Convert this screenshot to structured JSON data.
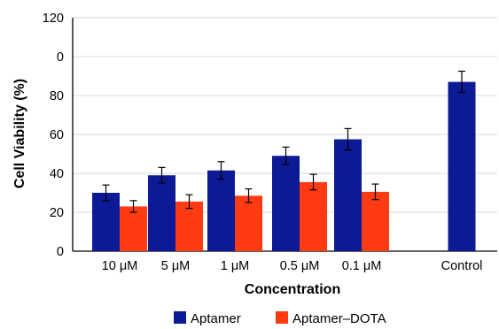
{
  "chart_data": {
    "type": "bar",
    "title": "",
    "xlabel": "Concentration",
    "ylabel": "Cell Viability (%)",
    "ylim": [
      0,
      120
    ],
    "y_ticks": [
      {
        "value": 0,
        "label": "0"
      },
      {
        "value": 20,
        "label": "20"
      },
      {
        "value": 40,
        "label": "40"
      },
      {
        "value": 60,
        "label": "60"
      },
      {
        "value": 80,
        "label": "80"
      },
      {
        "value": 120,
        "label": "120"
      }
    ],
    "y_tick_anomaly": {
      "value": 0,
      "label": "0",
      "note_position": "extra zero printed above baseline zero"
    },
    "categories": [
      "10 μM",
      "5 μM",
      "1 μM",
      "0.5 μM",
      "0.1 μM",
      "Control"
    ],
    "grid": true,
    "legend_position": "bottom",
    "series": [
      {
        "name": "Aptamer",
        "color": "#0d1a96",
        "values": [
          30,
          39,
          41.5,
          49,
          57.5,
          87
        ],
        "errors": [
          4,
          4,
          4.5,
          4.5,
          5.5,
          5.5
        ]
      },
      {
        "name": "Aptamer–DOTA",
        "color": "#ff3b12",
        "values": [
          23,
          25.5,
          28.5,
          35.5,
          30.5,
          null
        ],
        "errors": [
          3,
          3.5,
          3.5,
          4,
          4,
          null
        ]
      }
    ]
  }
}
